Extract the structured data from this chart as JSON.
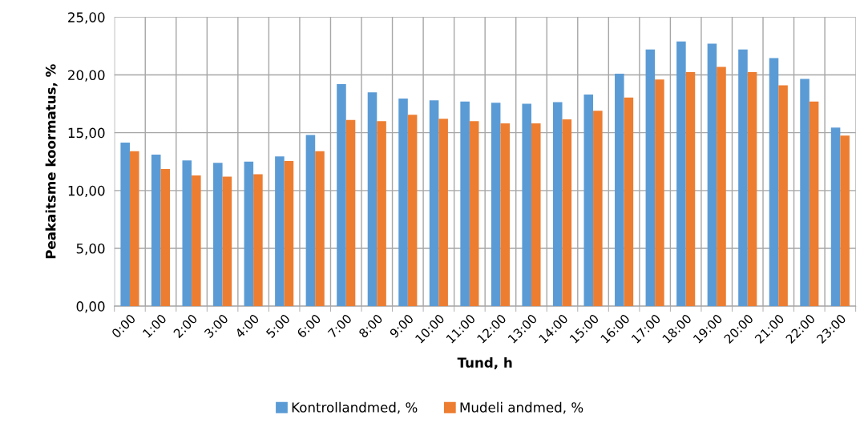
{
  "chart_data": {
    "type": "bar",
    "xlabel": "Tund, h",
    "ylabel": "Peakaitsme koormatus, %",
    "categories": [
      "0:00",
      "1:00",
      "2:00",
      "3:00",
      "4:00",
      "5:00",
      "6:00",
      "7:00",
      "8:00",
      "9:00",
      "10:00",
      "11:00",
      "12:00",
      "13:00",
      "14:00",
      "15:00",
      "16:00",
      "17:00",
      "18:00",
      "19:00",
      "20:00",
      "21:00",
      "22:00",
      "23:00"
    ],
    "series": [
      {
        "name": "Kontrollandmed, %",
        "color": "#5b9bd5",
        "values": [
          14.15,
          13.1,
          12.6,
          12.4,
          12.5,
          12.95,
          14.8,
          19.2,
          18.5,
          17.95,
          17.8,
          17.7,
          17.6,
          17.5,
          17.65,
          18.3,
          20.1,
          22.2,
          22.9,
          22.7,
          22.2,
          21.45,
          19.65,
          15.45
        ]
      },
      {
        "name": "Mudeli andmed, %",
        "color": "#ed7d31",
        "values": [
          13.4,
          11.85,
          11.3,
          11.2,
          11.4,
          12.55,
          13.4,
          16.1,
          16.0,
          16.55,
          16.2,
          16.0,
          15.8,
          15.8,
          16.15,
          16.9,
          18.05,
          19.6,
          20.25,
          20.7,
          20.25,
          19.1,
          17.7,
          14.75
        ]
      }
    ],
    "ylim": [
      0,
      25
    ],
    "yticks": [
      {
        "value": 0,
        "label": "0,00"
      },
      {
        "value": 5,
        "label": "5,00"
      },
      {
        "value": 10,
        "label": "10,00"
      },
      {
        "value": 15,
        "label": "15,00"
      },
      {
        "value": 20,
        "label": "20,00"
      },
      {
        "value": 25,
        "label": "25,00"
      }
    ],
    "grid": true,
    "legend": "bottom"
  }
}
